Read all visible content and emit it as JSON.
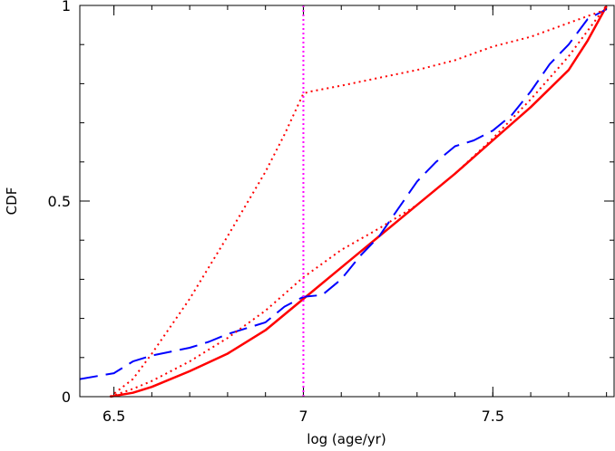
{
  "chart_data": {
    "type": "line",
    "xlabel": "log (age/yr)",
    "ylabel": "CDF",
    "xlim": [
      6.41,
      7.82
    ],
    "ylim": [
      0,
      1
    ],
    "x_ticks": [
      {
        "value": 6.5,
        "label": "6.5"
      },
      {
        "value": 7.0,
        "label": "7"
      },
      {
        "value": 7.5,
        "label": "7.5"
      }
    ],
    "y_ticks": [
      {
        "value": 0,
        "label": "0"
      },
      {
        "value": 0.5,
        "label": "0.5"
      },
      {
        "value": 1,
        "label": "1"
      }
    ],
    "x_minor_step": 0.1,
    "y_minor_step": 0.1,
    "series": [
      {
        "style": "solid",
        "color": "#ff0000",
        "x": [
          6.49,
          6.55,
          6.6,
          6.7,
          6.8,
          6.9,
          7.0,
          7.1,
          7.2,
          7.3,
          7.4,
          7.5,
          7.6,
          7.7,
          7.75,
          7.8
        ],
        "y": [
          0.0,
          0.01,
          0.025,
          0.065,
          0.11,
          0.17,
          0.25,
          0.33,
          0.41,
          0.49,
          0.57,
          0.655,
          0.74,
          0.835,
          0.91,
          0.998
        ]
      },
      {
        "style": "dashed",
        "color": "#0000ff",
        "x": [
          6.41,
          6.5,
          6.55,
          6.6,
          6.7,
          6.75,
          6.8,
          6.9,
          6.95,
          7.0,
          7.05,
          7.1,
          7.15,
          7.2,
          7.25,
          7.3,
          7.35,
          7.4,
          7.45,
          7.5,
          7.55,
          7.6,
          7.65,
          7.7,
          7.75,
          7.8
        ],
        "y": [
          0.045,
          0.06,
          0.09,
          0.105,
          0.125,
          0.14,
          0.16,
          0.19,
          0.23,
          0.255,
          0.26,
          0.3,
          0.36,
          0.41,
          0.48,
          0.55,
          0.6,
          0.64,
          0.655,
          0.68,
          0.72,
          0.78,
          0.85,
          0.9,
          0.965,
          0.99
        ]
      },
      {
        "style": "dotted",
        "color": "#ff0000",
        "x": [
          6.49,
          6.55,
          6.6,
          6.7,
          6.8,
          6.9,
          7.0,
          7.1,
          7.2,
          7.3,
          7.4,
          7.5,
          7.6,
          7.7,
          7.8
        ],
        "y": [
          0.0,
          0.02,
          0.04,
          0.09,
          0.15,
          0.22,
          0.305,
          0.375,
          0.43,
          0.49,
          0.57,
          0.66,
          0.76,
          0.87,
          1.0
        ]
      },
      {
        "style": "dotted",
        "color": "#ff0000",
        "x": [
          6.49,
          6.55,
          6.6,
          6.7,
          6.8,
          6.9,
          6.95,
          7.0,
          7.02,
          7.1,
          7.2,
          7.3,
          7.4,
          7.5,
          7.6,
          7.7,
          7.8
        ],
        "y": [
          0.0,
          0.045,
          0.11,
          0.25,
          0.41,
          0.575,
          0.67,
          0.775,
          0.78,
          0.795,
          0.815,
          0.835,
          0.86,
          0.895,
          0.92,
          0.955,
          0.99
        ]
      }
    ],
    "vline": {
      "x": 7.0,
      "style": "dotted",
      "color": "#ff00ff"
    }
  }
}
